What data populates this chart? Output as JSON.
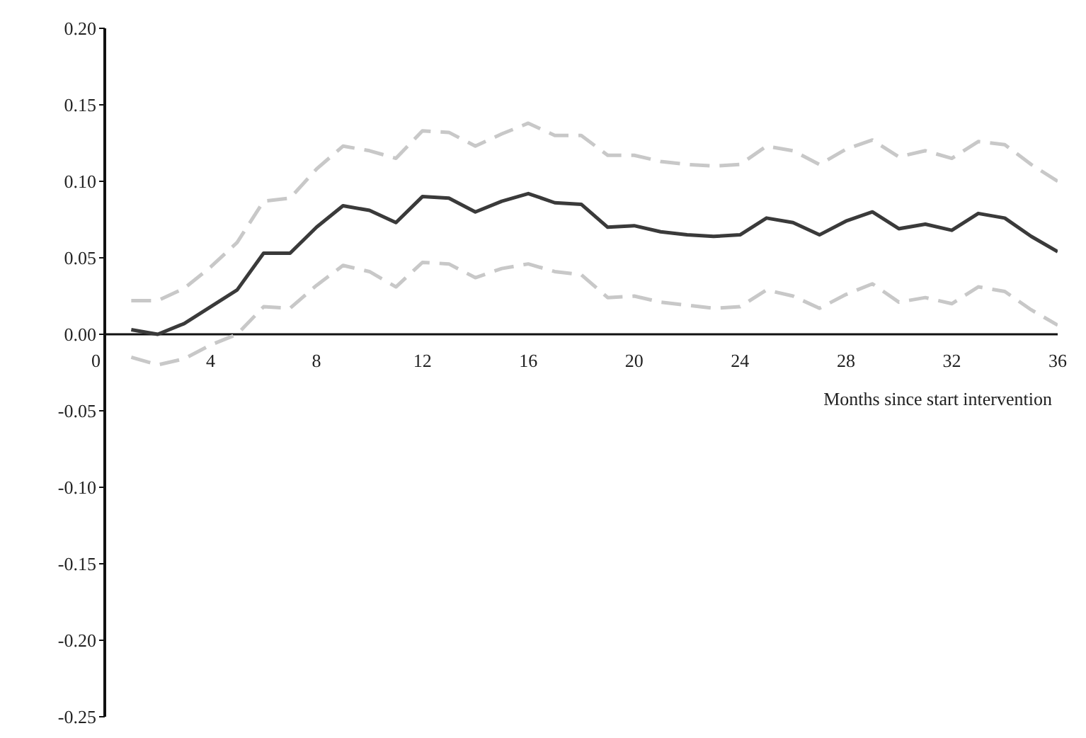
{
  "chart_data": {
    "type": "line",
    "xlabel": "Months since start intervention",
    "x": [
      1,
      2,
      3,
      4,
      5,
      6,
      7,
      8,
      9,
      10,
      11,
      12,
      13,
      14,
      15,
      16,
      17,
      18,
      19,
      20,
      21,
      22,
      23,
      24,
      25,
      26,
      27,
      28,
      29,
      30,
      31,
      32,
      33,
      34,
      35,
      36
    ],
    "series": [
      {
        "color": "#c8c8c8",
        "line_style": "dashed",
        "values": [
          0.022,
          0.022,
          0.03,
          0.044,
          0.06,
          0.087,
          0.089,
          0.108,
          0.123,
          0.12,
          0.115,
          0.133,
          0.132,
          0.123,
          0.131,
          0.138,
          0.13,
          0.13,
          0.117,
          0.117,
          0.113,
          0.111,
          0.11,
          0.111,
          0.123,
          0.12,
          0.111,
          0.121,
          0.127,
          0.116,
          0.12,
          0.115,
          0.126,
          0.124,
          0.111,
          0.1
        ]
      },
      {
        "color": "#c8c8c8",
        "line_style": "dashed",
        "values": [
          -0.015,
          -0.02,
          -0.016,
          -0.007,
          0.0,
          0.018,
          0.017,
          0.032,
          0.045,
          0.041,
          0.031,
          0.047,
          0.046,
          0.037,
          0.043,
          0.046,
          0.041,
          0.039,
          0.024,
          0.025,
          0.021,
          0.019,
          0.017,
          0.018,
          0.029,
          0.025,
          0.017,
          0.026,
          0.033,
          0.021,
          0.024,
          0.02,
          0.031,
          0.028,
          0.016,
          0.006
        ]
      },
      {
        "color": "#3a3a3a",
        "line_style": "solid",
        "values": [
          0.003,
          0.0,
          0.007,
          0.018,
          0.029,
          0.053,
          0.053,
          0.07,
          0.084,
          0.081,
          0.073,
          0.09,
          0.089,
          0.08,
          0.087,
          0.092,
          0.086,
          0.085,
          0.07,
          0.071,
          0.067,
          0.065,
          0.064,
          0.065,
          0.076,
          0.073,
          0.065,
          0.074,
          0.08,
          0.069,
          0.072,
          0.068,
          0.079,
          0.076,
          0.064,
          0.054
        ]
      }
    ],
    "xlim": [
      0,
      36
    ],
    "xticks": [
      0,
      4,
      8,
      12,
      16,
      20,
      24,
      28,
      32,
      36
    ],
    "ylim": [
      -0.25,
      0.2
    ],
    "yticks": [
      {
        "value": -0.25,
        "label": "-0.25"
      },
      {
        "value": -0.2,
        "label": "-0.20"
      },
      {
        "value": -0.15,
        "label": "-0.15"
      },
      {
        "value": -0.1,
        "label": "-0.10"
      },
      {
        "value": -0.05,
        "label": "-0.05"
      },
      {
        "value": 0,
        "label": "0.00"
      },
      {
        "value": 0.05,
        "label": "0.05"
      },
      {
        "value": 0.1,
        "label": "0.10"
      },
      {
        "value": 0.15,
        "label": "0.15"
      },
      {
        "value": 0.2,
        "label": "0.20"
      }
    ],
    "grid": false,
    "legend": false,
    "marker": "none"
  }
}
